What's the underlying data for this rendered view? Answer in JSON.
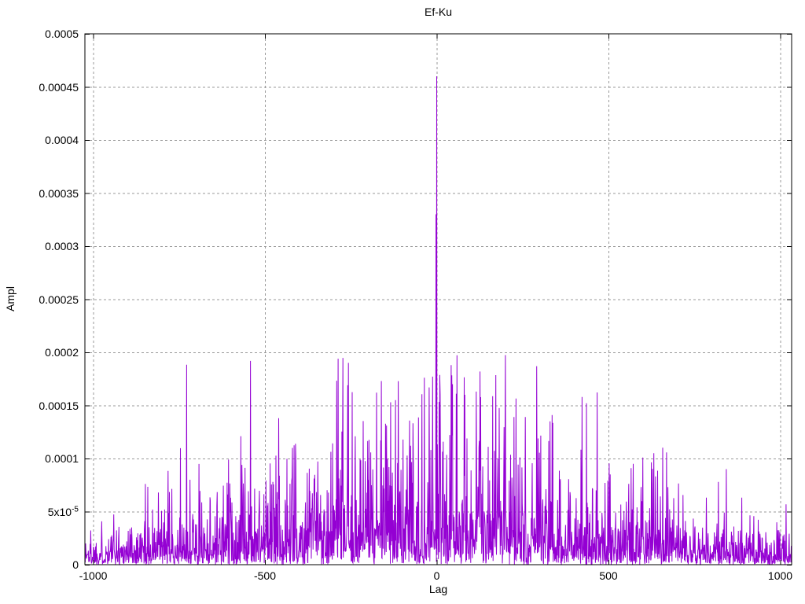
{
  "colors": {
    "line": "#9400d3",
    "grid": "#999999",
    "axis": "#000000",
    "background": "#ffffff",
    "text": "#000000"
  },
  "chart_data": {
    "type": "line",
    "title": "Ef-Ku",
    "xlabel": "Lag",
    "ylabel": "Ampl",
    "xlim": [
      -1024,
      1033
    ],
    "ylim": [
      0,
      0.0005
    ],
    "grid": "dashed",
    "legend": "none",
    "x_ticks": [
      {
        "value": -1000,
        "label": "-1000"
      },
      {
        "value": -500,
        "label": "-500"
      },
      {
        "value": 0,
        "label": "0"
      },
      {
        "value": 500,
        "label": "500"
      },
      {
        "value": 1000,
        "label": "1000"
      }
    ],
    "y_ticks": [
      {
        "value": 0,
        "label": "0"
      },
      {
        "value": 5e-05,
        "label": "5x10^-5"
      },
      {
        "value": 0.0001,
        "label": "0.0001"
      },
      {
        "value": 0.00015,
        "label": "0.00015"
      },
      {
        "value": 0.0002,
        "label": "0.0002"
      },
      {
        "value": 0.00025,
        "label": "0.00025"
      },
      {
        "value": 0.0003,
        "label": "0.0003"
      },
      {
        "value": 0.00035,
        "label": "0.00035"
      },
      {
        "value": 0.0004,
        "label": "0.0004"
      },
      {
        "value": 0.00045,
        "label": "0.00045"
      },
      {
        "value": 0.0005,
        "label": "0.0005"
      }
    ],
    "main_peak": {
      "lag": 0,
      "ampl": 0.00046
    },
    "secondary_peak": {
      "lag": -2,
      "ampl": 0.00033
    },
    "notable_spikes": [
      [
        -848,
        7.6e-05
      ],
      [
        -718,
        8e-05
      ],
      [
        -570,
        0.000121
      ],
      [
        -460,
        0.000138
      ],
      [
        -420,
        0.00011
      ],
      [
        -287,
        0.000194
      ],
      [
        -259,
        0.000169
      ],
      [
        -175,
        0.000162
      ],
      [
        -161,
        0.000173
      ],
      [
        -120,
        0.000155
      ],
      [
        -22,
        0.000167
      ],
      [
        10,
        0.00016
      ],
      [
        46,
        0.00017
      ],
      [
        57,
        0.000161
      ],
      [
        82,
        0.00016
      ],
      [
        115,
        0.000163
      ],
      [
        291,
        0.000187
      ],
      [
        330,
        0.000135
      ],
      [
        423,
        0.000158
      ],
      [
        436,
        0.000152
      ],
      [
        572,
        9.5e-05
      ],
      [
        632,
        0.000105
      ],
      [
        820,
        7.8e-05
      ]
    ],
    "noise": {
      "description": "dense absolute-value noise floor with roughly triangular envelope peaking at lag 0",
      "seed": 1337,
      "base_mean": 1.2e-05,
      "center_boost": 3.6e-05,
      "envelope_power": 1.2,
      "cap": 0.0002
    }
  }
}
